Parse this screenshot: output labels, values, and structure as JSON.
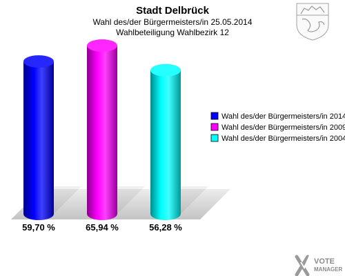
{
  "colors": {
    "floor": "#cfcfcf",
    "logo_shield": "#a0a0a0",
    "brand": "#8a8a8a"
  },
  "icons": {
    "coat_of_arms": "coat-of-arms-icon",
    "brand_logo": "votemanager-logo-icon"
  },
  "brand": {
    "line1": "VOTE",
    "line2": "MANAGER"
  },
  "chart_data": {
    "type": "bar",
    "title": "Stadt Delbrück",
    "subtitle": "Wahl des/der Bürgermeisters/in  25.05.2014",
    "subtitle2": "Wahlbeteiligung Wahlbezirk 12",
    "categories": [
      "Wahl des/der Bürgermeisters/in  2014",
      "Wahl des/der Bürgermeisters/in 2009",
      "Wahl des/der Bürgermeisters/in  2004"
    ],
    "values": [
      59.7,
      65.94,
      56.28
    ],
    "value_labels": [
      "59,70 %",
      "65,94 %",
      "56,28 %"
    ],
    "colors": [
      "#0000ff",
      "#ff00ff",
      "#00ffff"
    ],
    "ylim": [
      0,
      100
    ],
    "grid": false,
    "legend": {
      "placement": "right",
      "entries": [
        "Wahl des/der Bürgermeisters/in  2014",
        "Wahl des/der Bürgermeisters/in 2009",
        "Wahl des/der Bürgermeisters/in  2004"
      ]
    }
  }
}
